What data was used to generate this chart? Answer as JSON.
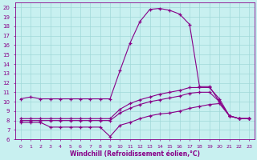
{
  "xlabel": "Windchill (Refroidissement éolien,°C)",
  "background_color": "#c8f0f0",
  "line_color": "#880088",
  "x_hours": [
    0,
    1,
    2,
    3,
    4,
    5,
    6,
    7,
    8,
    9,
    10,
    11,
    12,
    13,
    14,
    15,
    16,
    17,
    18,
    19,
    20,
    21,
    22,
    23
  ],
  "y_main": [
    10.3,
    10.5,
    10.3,
    10.3,
    10.3,
    10.3,
    10.3,
    10.3,
    10.3,
    10.3,
    13.3,
    16.2,
    18.5,
    19.8,
    19.9,
    19.7,
    19.3,
    18.2,
    11.6,
    11.6,
    10.0,
    8.5,
    8.2,
    8.2
  ],
  "y_top": [
    8.2,
    8.2,
    8.2,
    8.2,
    8.2,
    8.2,
    8.2,
    8.2,
    8.2,
    8.2,
    9.2,
    9.8,
    10.2,
    10.5,
    10.8,
    11.0,
    11.2,
    11.5,
    11.5,
    11.5,
    10.3,
    8.5,
    8.2,
    8.2
  ],
  "y_mid": [
    8.0,
    8.0,
    8.0,
    8.0,
    8.0,
    8.0,
    8.0,
    8.0,
    8.0,
    8.0,
    8.8,
    9.3,
    9.7,
    10.0,
    10.2,
    10.4,
    10.6,
    10.9,
    11.0,
    11.0,
    10.0,
    8.5,
    8.2,
    8.2
  ],
  "y_bot": [
    7.8,
    7.8,
    7.8,
    7.3,
    7.3,
    7.3,
    7.3,
    7.3,
    7.3,
    6.3,
    7.5,
    7.8,
    8.2,
    8.5,
    8.7,
    8.8,
    9.0,
    9.3,
    9.5,
    9.7,
    9.8,
    8.5,
    8.2,
    8.2
  ],
  "ylim": [
    6,
    20.5
  ],
  "xlim": [
    -0.5,
    23.5
  ],
  "yticks": [
    6,
    7,
    8,
    9,
    10,
    11,
    12,
    13,
    14,
    15,
    16,
    17,
    18,
    19,
    20
  ],
  "xticks": [
    0,
    1,
    2,
    3,
    4,
    5,
    6,
    7,
    8,
    9,
    10,
    11,
    12,
    13,
    14,
    15,
    16,
    17,
    18,
    19,
    20,
    21,
    22,
    23
  ],
  "grid_color": "#a0d8d8",
  "linewidth": 0.8,
  "markersize": 3.5
}
